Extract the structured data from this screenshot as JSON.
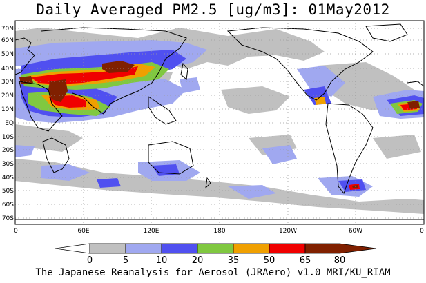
{
  "title": "Daily Averaged PM2.5 [ug/m3]: 01May2012",
  "footer": "The Japanese Reanalysis for Aerosol (JRAero) v1.0 MRI/KU_RIAM",
  "colors": {
    "bins": [
      "#ffffff",
      "#c0c0c0",
      "#a0a8f0",
      "#5050f0",
      "#80c840",
      "#f0a000",
      "#f00000",
      "#802000"
    ],
    "ocean": "#ffffff",
    "grid": "#9a9a9a"
  },
  "map": {
    "lat_labels": [
      "70N",
      "60N",
      "50N",
      "40N",
      "30N",
      "20N",
      "10N",
      "EQ",
      "10S",
      "20S",
      "30S",
      "40S",
      "50S",
      "60S",
      "70S"
    ],
    "lon_labels": [
      "0",
      "60E",
      "120E",
      "180",
      "120W",
      "60W",
      "0"
    ]
  },
  "colorbar": {
    "labels": [
      "0",
      "5",
      "10",
      "20",
      "35",
      "50",
      "65",
      "80"
    ]
  }
}
